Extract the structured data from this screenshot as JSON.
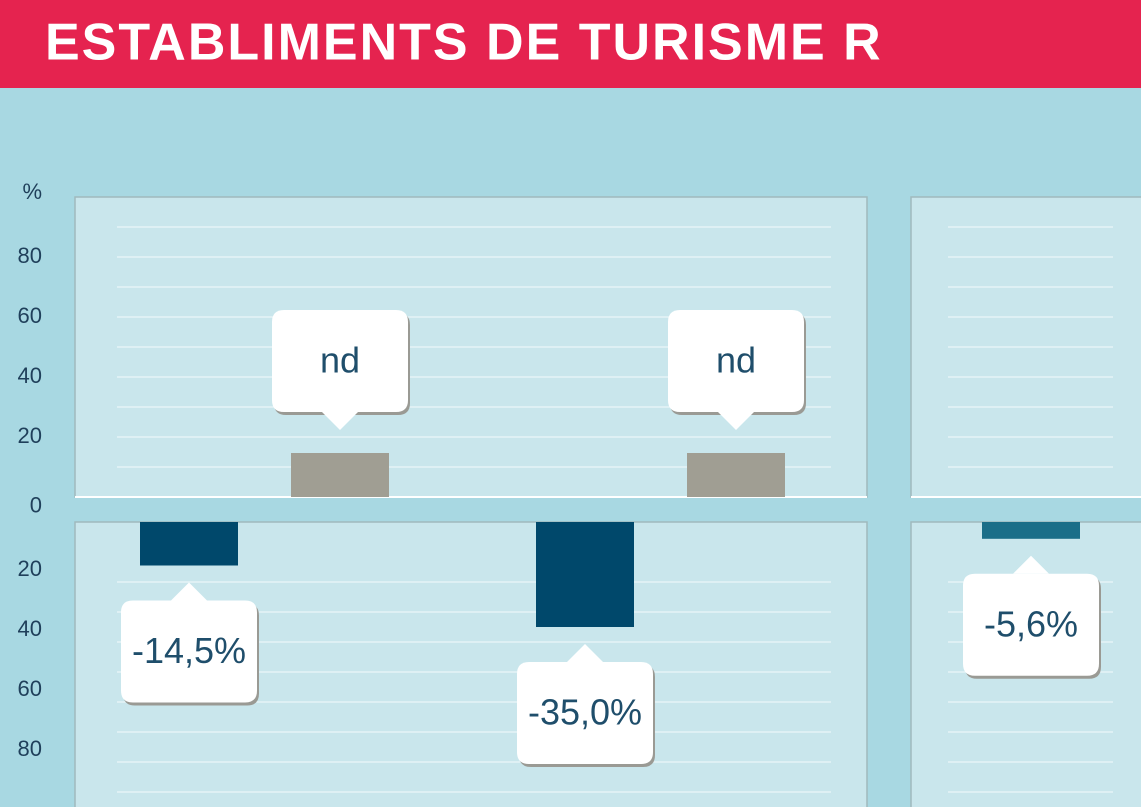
{
  "title": "ESTABLIMENTS DE TURISME R",
  "chart_data": [
    {
      "type": "bar",
      "y_label": "%",
      "ylim": [
        -95,
        100
      ],
      "yticks": [
        80,
        60,
        40,
        20,
        0,
        {
          "value": -20,
          "label": "20"
        },
        {
          "value": -40,
          "label": "40"
        },
        {
          "value": -60,
          "label": "60"
        },
        {
          "value": -80,
          "label": "80"
        }
      ],
      "grid": true,
      "categories": [
        null,
        null
      ],
      "series": [
        {
          "color": "#00486b",
          "values": [
            -14.5,
            -35.0
          ],
          "value_labels": [
            "-14,5%",
            "-35,0%"
          ]
        },
        {
          "color": "#a09e93",
          "values": [
            null,
            null
          ],
          "value_labels": [
            "nd",
            "nd"
          ]
        }
      ]
    },
    {
      "type": "bar",
      "ylim": [
        -95,
        100
      ],
      "grid": true,
      "categories": [
        null
      ],
      "series": [
        {
          "color": "#1b6e88",
          "values": [
            -5.6
          ],
          "value_labels": [
            "-5,6%"
          ]
        }
      ]
    }
  ]
}
